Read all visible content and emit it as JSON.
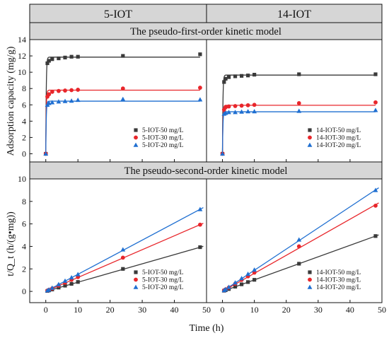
{
  "figure": {
    "column_headers": [
      "5-IOT",
      "14-IOT"
    ],
    "row_headers": [
      "The pseudo-first-order kinetic model",
      "The pseudo-second-order kinetic model"
    ],
    "xlabel": "Time (h)"
  },
  "colors": {
    "series_50": "#3a3a3a",
    "series_30": "#e8262b",
    "series_20": "#1f6fd1",
    "header_fill": "#d6d6d6"
  },
  "chart_data": [
    {
      "panel": "5-IOT first-order",
      "type": "scatter",
      "ylabel": "Adsorption capacity (mg/g)",
      "xlim": [
        -5,
        50
      ],
      "ylim": [
        -1,
        14
      ],
      "xticks": [
        0,
        10,
        20,
        30,
        40,
        50
      ],
      "yticks": [
        0,
        2,
        4,
        6,
        8,
        10,
        12,
        14
      ],
      "show_x_ticklabels": false,
      "legend_position": "bottom-right",
      "series": [
        {
          "name": "5-IOT-50 mg/L",
          "marker": "square",
          "color": "#3a3a3a",
          "x": [
            0,
            0.5,
            1,
            2,
            4,
            6,
            8,
            10,
            24,
            48
          ],
          "y": [
            0,
            11.1,
            11.4,
            11.6,
            11.7,
            11.8,
            11.9,
            11.9,
            12.0,
            12.2
          ],
          "fit": {
            "model": "pfo",
            "qe": 11.85,
            "k": 7
          }
        },
        {
          "name": "5-IOT-30 mg/L",
          "marker": "circle",
          "color": "#e8262b",
          "x": [
            0,
            0.5,
            1,
            2,
            4,
            6,
            8,
            10,
            24,
            48
          ],
          "y": [
            0,
            7.0,
            7.3,
            7.6,
            7.7,
            7.75,
            7.8,
            7.85,
            8.0,
            8.1
          ],
          "fit": {
            "model": "pfo",
            "qe": 7.8,
            "k": 7
          }
        },
        {
          "name": "5-IOT-20 mg/L",
          "marker": "triangle",
          "color": "#1f6fd1",
          "x": [
            0,
            0.5,
            1,
            2,
            4,
            6,
            8,
            10,
            24,
            48
          ],
          "y": [
            0,
            6.0,
            6.2,
            6.3,
            6.4,
            6.45,
            6.5,
            6.6,
            6.7,
            6.65
          ],
          "fit": {
            "model": "pfo",
            "qe": 6.45,
            "k": 7
          }
        }
      ]
    },
    {
      "panel": "14-IOT first-order",
      "type": "scatter",
      "ylabel": "",
      "xlim": [
        -5,
        50
      ],
      "ylim": [
        -1,
        14
      ],
      "xticks": [
        0,
        10,
        20,
        30,
        40,
        50
      ],
      "yticks": [],
      "show_x_ticklabels": false,
      "legend_position": "bottom-right",
      "series": [
        {
          "name": "14-IOT-50 mg/L",
          "marker": "square",
          "color": "#3a3a3a",
          "x": [
            0,
            0.5,
            1,
            2,
            4,
            6,
            8,
            10,
            24,
            48
          ],
          "y": [
            0,
            8.8,
            9.2,
            9.4,
            9.5,
            9.55,
            9.6,
            9.7,
            9.75,
            9.75
          ],
          "fit": {
            "model": "pfo",
            "qe": 9.65,
            "k": 7
          }
        },
        {
          "name": "14-IOT-30 mg/L",
          "marker": "circle",
          "color": "#e8262b",
          "x": [
            0,
            0.5,
            1,
            2,
            4,
            6,
            8,
            10,
            24,
            48
          ],
          "y": [
            0,
            5.4,
            5.7,
            5.8,
            5.85,
            5.9,
            5.95,
            6.0,
            6.2,
            6.3
          ],
          "fit": {
            "model": "pfo",
            "qe": 5.95,
            "k": 7
          }
        },
        {
          "name": "14-IOT-20 mg/L",
          "marker": "triangle",
          "color": "#1f6fd1",
          "x": [
            0,
            0.5,
            1,
            2,
            4,
            6,
            8,
            10,
            24,
            48
          ],
          "y": [
            0,
            4.9,
            5.0,
            5.1,
            5.1,
            5.15,
            5.2,
            5.2,
            5.25,
            5.35
          ],
          "fit": {
            "model": "pfo",
            "qe": 5.15,
            "k": 7
          }
        }
      ]
    },
    {
      "panel": "5-IOT second-order",
      "type": "scatter",
      "ylabel": "t/Q_t (h/(g•mg))",
      "xlim": [
        -5,
        50
      ],
      "ylim": [
        -1,
        10
      ],
      "xticks": [
        0,
        10,
        20,
        30,
        40,
        50
      ],
      "yticks": [
        0,
        2,
        4,
        6,
        8,
        10
      ],
      "show_x_ticklabels": true,
      "legend_position": "bottom-right",
      "series": [
        {
          "name": "5-IOT-50 mg/L",
          "marker": "square",
          "color": "#3a3a3a",
          "x": [
            0.5,
            1,
            2,
            4,
            6,
            8,
            10,
            24,
            48
          ],
          "y": [
            0.04,
            0.09,
            0.17,
            0.34,
            0.51,
            0.67,
            0.84,
            2.0,
            3.93
          ],
          "fit": {
            "model": "line",
            "slope": 0.0817,
            "intercept": 0.0
          }
        },
        {
          "name": "5-IOT-30 mg/L",
          "marker": "circle",
          "color": "#e8262b",
          "x": [
            0.5,
            1,
            2,
            4,
            6,
            8,
            10,
            24,
            48
          ],
          "y": [
            0.07,
            0.14,
            0.26,
            0.52,
            0.77,
            1.03,
            1.27,
            3.0,
            5.93
          ],
          "fit": {
            "model": "line",
            "slope": 0.1236,
            "intercept": 0.0
          }
        },
        {
          "name": "5-IOT-20 mg/L",
          "marker": "triangle",
          "color": "#1f6fd1",
          "x": [
            0.5,
            1,
            2,
            4,
            6,
            8,
            10,
            24,
            48
          ],
          "y": [
            0.08,
            0.16,
            0.32,
            0.63,
            0.94,
            1.24,
            1.52,
            3.72,
            7.3
          ],
          "fit": {
            "model": "line",
            "slope": 0.152,
            "intercept": 0.0
          }
        }
      ]
    },
    {
      "panel": "14-IOT second-order",
      "type": "scatter",
      "ylabel": "",
      "xlim": [
        -5,
        50
      ],
      "ylim": [
        -1,
        10
      ],
      "xticks": [
        0,
        10,
        20,
        30,
        40,
        50
      ],
      "yticks": [],
      "show_x_ticklabels": true,
      "legend_position": "bottom-right",
      "series": [
        {
          "name": "14-IOT-50 mg/L",
          "marker": "square",
          "color": "#3a3a3a",
          "x": [
            0.5,
            1,
            2,
            4,
            6,
            8,
            10,
            24,
            48
          ],
          "y": [
            0.06,
            0.11,
            0.21,
            0.42,
            0.63,
            0.83,
            1.03,
            2.46,
            4.92
          ],
          "fit": {
            "model": "line",
            "slope": 0.1025,
            "intercept": 0.0
          }
        },
        {
          "name": "14-IOT-30 mg/L",
          "marker": "circle",
          "color": "#e8262b",
          "x": [
            0.5,
            1,
            2,
            4,
            6,
            8,
            10,
            24,
            48
          ],
          "y": [
            0.09,
            0.18,
            0.34,
            0.68,
            1.02,
            1.34,
            1.67,
            4.0,
            7.62
          ],
          "fit": {
            "model": "line",
            "slope": 0.1605,
            "intercept": 0.0
          }
        },
        {
          "name": "14-IOT-20 mg/L",
          "marker": "triangle",
          "color": "#1f6fd1",
          "x": [
            0.5,
            1,
            2,
            4,
            6,
            8,
            10,
            24,
            48
          ],
          "y": [
            0.1,
            0.2,
            0.39,
            0.78,
            1.17,
            1.55,
            1.92,
            4.6,
            9.0
          ],
          "fit": {
            "model": "line",
            "slope": 0.188,
            "intercept": 0.0
          }
        }
      ]
    }
  ]
}
